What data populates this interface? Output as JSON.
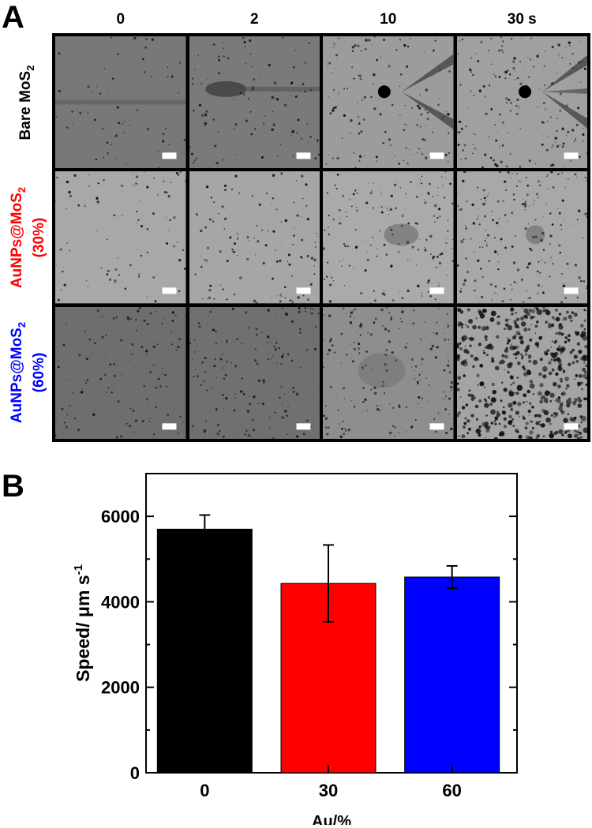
{
  "panel_a": {
    "letter": "A",
    "columns": [
      "0",
      "2",
      "10",
      "30 s"
    ],
    "rows": [
      {
        "line1": "Bare MoS",
        "sub": "2",
        "line2": "",
        "color": "#000000",
        "tones": [
          "#787878",
          "#7a7a7a",
          "#9c9c9c",
          "#a0a0a0"
        ]
      },
      {
        "line1": "AuNPs@MoS",
        "sub": "2",
        "line2": "(30%)",
        "color": "#ff0000",
        "tones": [
          "#a8a8a8",
          "#a6a6a6",
          "#aaaaaa",
          "#a8a8a8"
        ]
      },
      {
        "line1": "AuNPs@MoS",
        "sub": "2",
        "line2": "(60%)",
        "color": "#0000ff",
        "tones": [
          "#6e6e6e",
          "#707070",
          "#8e8e8e",
          "#a4a4a4"
        ]
      }
    ]
  },
  "panel_b": {
    "letter": "B"
  },
  "chart_data": {
    "type": "bar",
    "categories": [
      "0",
      "30",
      "60"
    ],
    "values": [
      5700,
      4430,
      4580
    ],
    "errors": [
      330,
      900,
      260
    ],
    "colors": [
      "#000000",
      "#ff0000",
      "#0000ff"
    ],
    "xlabel": "Au/%",
    "ylabel": "Speed/ μm s",
    "ylabel_sup": "-1",
    "ylim": [
      0,
      7000
    ],
    "yticks": [
      0,
      2000,
      4000,
      6000
    ],
    "grid": false
  }
}
